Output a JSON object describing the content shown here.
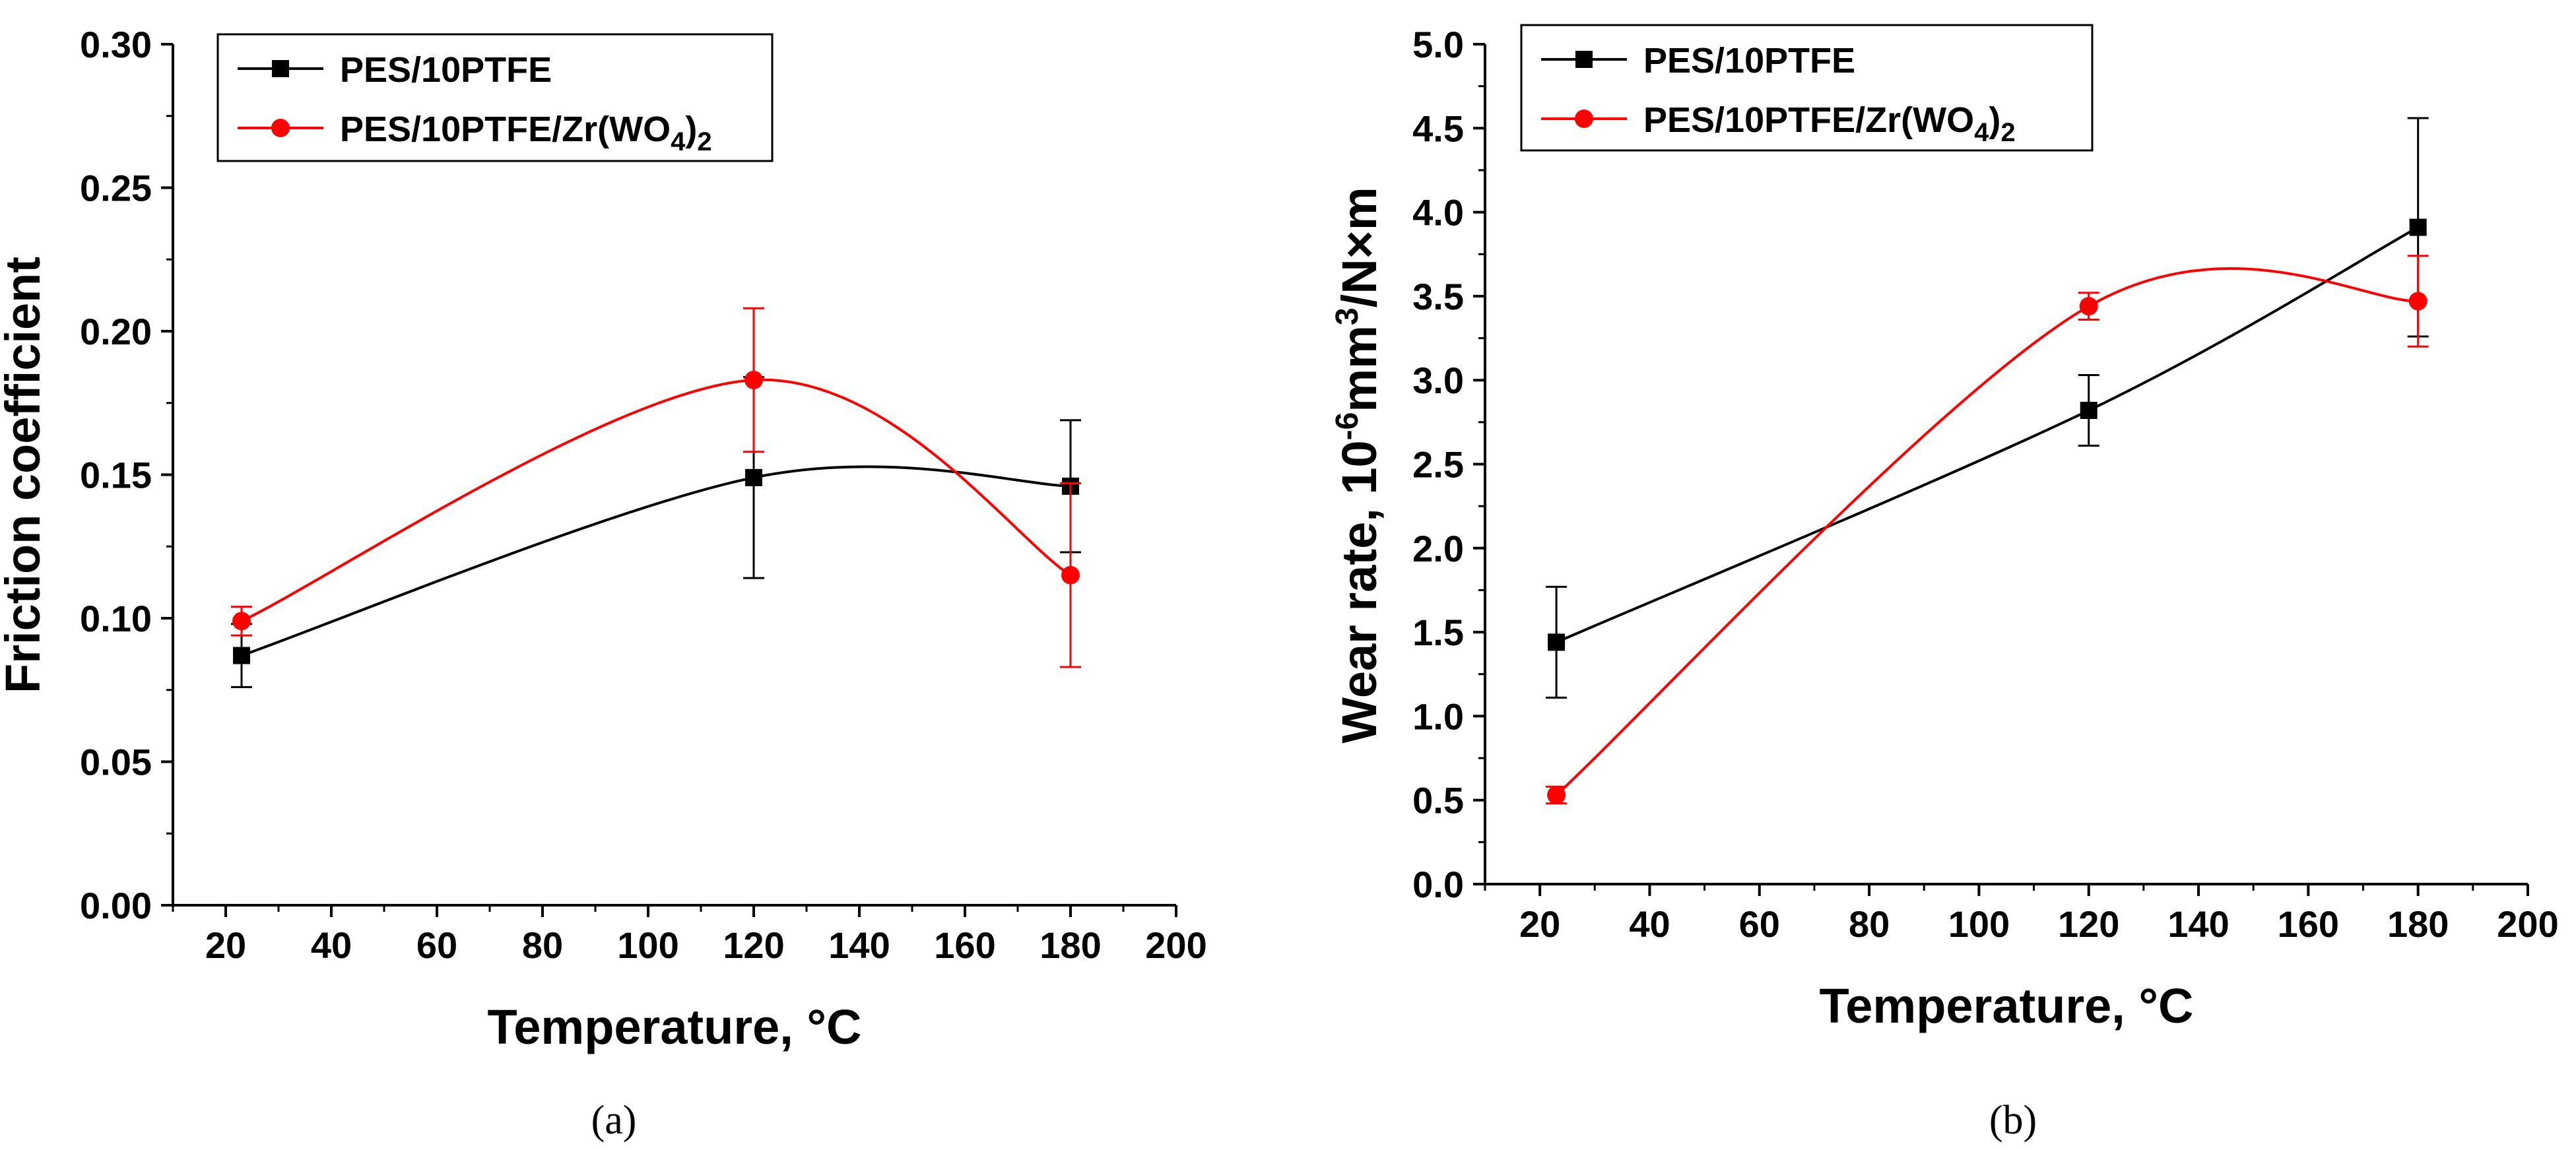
{
  "chart_data": [
    {
      "type": "line",
      "panel_label": "(a)",
      "xlabel": "Temperature, °C",
      "ylabel": "Friction coefficient",
      "xlim": [
        10,
        200
      ],
      "ylim": [
        0,
        0.3
      ],
      "xticks": [
        "20",
        "40",
        "60",
        "80",
        "100",
        "120",
        "140",
        "160",
        "180",
        "200"
      ],
      "yticks": [
        "0.00",
        "0.05",
        "0.10",
        "0.15",
        "0.20",
        "0.25",
        "0.30"
      ],
      "legend_position": "top-left",
      "x": [
        23,
        120,
        180
      ],
      "series": [
        {
          "name": "PES/10PTFE",
          "name_suffix": "",
          "color": "#000000",
          "marker": "square",
          "values": [
            0.087,
            0.149,
            0.146
          ],
          "errors": [
            0.011,
            0.035,
            0.023
          ]
        },
        {
          "name": "PES/10PTFE/Zr(WO",
          "name_suffix": "4",
          "name_tail": ")",
          "name_tail_sub": "2",
          "color": "#ff0000",
          "marker": "circle",
          "values": [
            0.099,
            0.183,
            0.115
          ],
          "errors": [
            0.005,
            0.025,
            0.032
          ]
        }
      ]
    },
    {
      "type": "line",
      "panel_label": "(b)",
      "xlabel": "Temperature, °C",
      "ylabel_parts": [
        "Wear rate,  10",
        "-6",
        "mm",
        "3",
        "/N×m"
      ],
      "xlim": [
        10,
        200
      ],
      "ylim": [
        0,
        5.0
      ],
      "xticks": [
        "20",
        "40",
        "60",
        "80",
        "100",
        "120",
        "140",
        "160",
        "180",
        "200"
      ],
      "yticks": [
        "0.0",
        "0.5",
        "1.0",
        "1.5",
        "2.0",
        "2.5",
        "3.0",
        "3.5",
        "4.0",
        "4.5",
        "5.0"
      ],
      "legend_position": "top-left",
      "x": [
        23,
        120,
        180
      ],
      "series": [
        {
          "name": "PES/10PTFE",
          "name_suffix": "",
          "color": "#000000",
          "marker": "square",
          "values": [
            1.44,
            2.82,
            3.91
          ],
          "errors": [
            0.33,
            0.21,
            0.65
          ]
        },
        {
          "name": "PES/10PTFE/Zr(WO",
          "name_suffix": "4",
          "name_tail": ")",
          "name_tail_sub": "2",
          "color": "#ff0000",
          "marker": "circle",
          "values": [
            0.53,
            3.44,
            3.47
          ],
          "errors": [
            0.05,
            0.08,
            0.27
          ]
        }
      ]
    }
  ]
}
